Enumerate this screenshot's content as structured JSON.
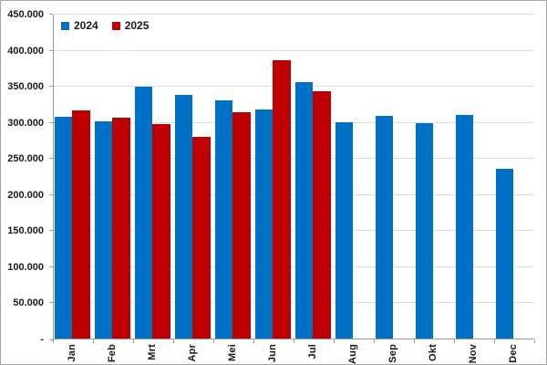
{
  "chart_data": {
    "type": "bar",
    "title": "",
    "xlabel": "",
    "ylabel": "",
    "categories": [
      "Jan",
      "Feb",
      "Mrt",
      "Apr",
      "Mei",
      "Jun",
      "Jul",
      "Aug",
      "Sep",
      "Okt",
      "Nov",
      "Dec"
    ],
    "series": [
      {
        "name": "2024",
        "color": "#0072c6",
        "values": [
          307000,
          301000,
          349000,
          338000,
          330000,
          317000,
          355000,
          300000,
          309000,
          298000,
          310000,
          235000
        ]
      },
      {
        "name": "2025",
        "color": "#c00000",
        "values": [
          316000,
          306000,
          297000,
          280000,
          313000,
          385000,
          343000,
          null,
          null,
          null,
          null,
          null
        ]
      }
    ],
    "ylim": [
      0,
      450000
    ],
    "ytick_interval": 50000,
    "ytick_labels": [
      "-",
      "50.000",
      "100.000",
      "150.000",
      "200.000",
      "250.000",
      "300.000",
      "350.000",
      "400.000",
      "450.000"
    ],
    "grid": true,
    "legend_position": "top-left",
    "gridline_color": "#dedede",
    "axis_color": "#9b9b9b"
  }
}
